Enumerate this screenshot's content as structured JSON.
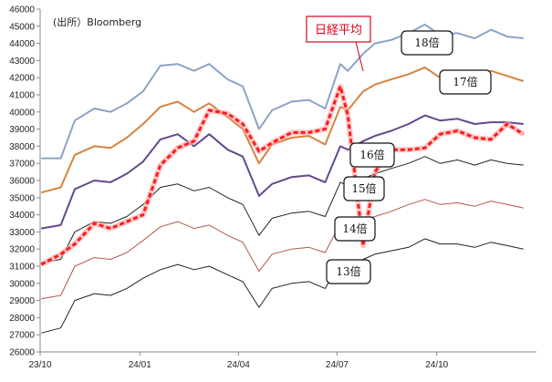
{
  "chart_data": {
    "type": "line",
    "source_note": "(出所）Bloomberg",
    "x_ticks": [
      "23/10",
      "24/01",
      "24/04",
      "24/07",
      "24/10"
    ],
    "ylim": [
      26000,
      46000
    ],
    "y_ticks": [
      "26000",
      "27000",
      "28000",
      "29000",
      "30000",
      "31000",
      "32000",
      "33000",
      "34000",
      "35000",
      "36000",
      "37000",
      "38000",
      "39000",
      "40000",
      "41000",
      "42000",
      "43000",
      "44000",
      "45000",
      "46000"
    ],
    "grid": false,
    "x": [
      "2023-10-02",
      "2023-10-20",
      "2023-11-02",
      "2023-11-20",
      "2023-12-05",
      "2023-12-20",
      "2024-01-04",
      "2024-01-20",
      "2024-02-05",
      "2024-02-20",
      "2024-03-05",
      "2024-03-22",
      "2024-04-05",
      "2024-04-20",
      "2024-05-02",
      "2024-05-20",
      "2024-06-05",
      "2024-06-20",
      "2024-07-04",
      "2024-07-11",
      "2024-07-25",
      "2024-08-05",
      "2024-08-20",
      "2024-09-05",
      "2024-09-20",
      "2024-10-04",
      "2024-10-20",
      "2024-11-05",
      "2024-11-20",
      "2024-12-05",
      "2024-12-20"
    ],
    "series": [
      {
        "name": "18倍",
        "color": "#8da2c8",
        "values": [
          37300,
          37300,
          39500,
          40200,
          40000,
          40500,
          41200,
          42700,
          42800,
          42400,
          42800,
          41900,
          41500,
          39000,
          40100,
          40600,
          40700,
          40200,
          42800,
          42400,
          43400,
          44000,
          44200,
          44600,
          45100,
          44500,
          44600,
          44300,
          44800,
          44400,
          44300
        ]
      },
      {
        "name": "17倍",
        "color": "#d5843f",
        "values": [
          35300,
          35600,
          37500,
          38000,
          37900,
          38500,
          39300,
          40300,
          40600,
          40000,
          40500,
          39700,
          39000,
          37000,
          38100,
          38500,
          38600,
          38100,
          40300,
          40100,
          41200,
          41600,
          41900,
          42200,
          42600,
          42000,
          42300,
          42000,
          42400,
          42100,
          41800
        ]
      },
      {
        "name": "16倍",
        "color": "#64488c",
        "values": [
          33200,
          33400,
          35500,
          36000,
          35900,
          36400,
          37100,
          38400,
          38700,
          38000,
          38700,
          37800,
          37400,
          35100,
          35800,
          36200,
          36300,
          35900,
          38000,
          37800,
          38300,
          38600,
          38900,
          39300,
          39800,
          39500,
          39600,
          39300,
          39400,
          39400,
          39300
        ]
      },
      {
        "name": "15倍",
        "color": "#222222",
        "values": [
          31200,
          31400,
          33000,
          33600,
          33500,
          33900,
          34600,
          35600,
          35800,
          35400,
          35600,
          35000,
          34600,
          32800,
          33800,
          34100,
          34200,
          33900,
          35900,
          35700,
          36100,
          36400,
          36700,
          37000,
          37400,
          37000,
          37200,
          36900,
          37200,
          37000,
          36900
        ]
      },
      {
        "name": "14倍",
        "color": "#b5564c",
        "values": [
          29100,
          29300,
          31000,
          31500,
          31400,
          31800,
          32500,
          33300,
          33600,
          33200,
          33400,
          32800,
          32400,
          30700,
          31700,
          32000,
          32100,
          31800,
          33500,
          33300,
          33700,
          33900,
          34200,
          34600,
          34900,
          34600,
          34700,
          34500,
          34800,
          34600,
          34400
        ]
      },
      {
        "name": "13倍",
        "color": "#222222",
        "values": [
          27100,
          27400,
          29000,
          29400,
          29300,
          29700,
          30300,
          30800,
          31100,
          30800,
          31000,
          30500,
          30100,
          28600,
          29700,
          30000,
          30100,
          29700,
          31300,
          31000,
          31400,
          31700,
          31900,
          32100,
          32600,
          32300,
          32300,
          32100,
          32400,
          32200,
          32000
        ]
      },
      {
        "name": "日経平均",
        "color": "#ff1a1a",
        "values": [
          31100,
          31700,
          32300,
          33500,
          33200,
          33600,
          34000,
          36900,
          37900,
          38300,
          40100,
          39900,
          39300,
          37700,
          38200,
          38800,
          38800,
          39000,
          41500,
          39800,
          32200,
          36500,
          37800,
          37800,
          37900,
          38700,
          38900,
          38500,
          38400,
          39300,
          38700
        ]
      }
    ],
    "callout_label": "日経平均",
    "title": ""
  }
}
